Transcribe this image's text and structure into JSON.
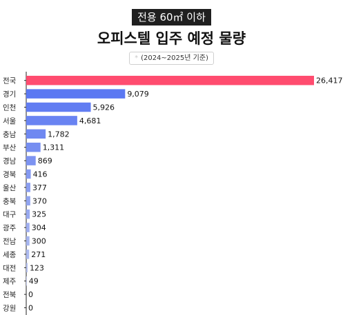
{
  "header": {
    "badge": "전용 60㎡ 이하",
    "title": "오피스텔 입주 예정 물량",
    "subtitle": "(2024~2025년 기준)",
    "subtitle_marker": "*"
  },
  "colors": {
    "highlight": "#ff4c6f",
    "bar_top": "#5b78f2",
    "bar_bottom": "#c7cfee",
    "axis": "#222222"
  },
  "chart_data": {
    "type": "bar",
    "orientation": "horizontal",
    "title": "오피스텔 입주 예정 물량",
    "categories": [
      "전국",
      "경기",
      "인천",
      "서울",
      "충남",
      "부산",
      "경남",
      "경북",
      "울산",
      "충북",
      "대구",
      "광주",
      "전남",
      "세종",
      "대전",
      "제주",
      "전북",
      "강원"
    ],
    "values": [
      26417,
      9079,
      5926,
      4681,
      1782,
      1311,
      869,
      416,
      377,
      370,
      325,
      304,
      300,
      271,
      123,
      49,
      0,
      0
    ],
    "value_labels": [
      "26,417",
      "9,079",
      "5,926",
      "4,681",
      "1,782",
      "1,311",
      "869",
      "416",
      "377",
      "370",
      "325",
      "304",
      "300",
      "271",
      "123",
      "49",
      "0",
      "0"
    ],
    "xlim": [
      0,
      26417
    ],
    "grid": false,
    "legend": "none"
  }
}
